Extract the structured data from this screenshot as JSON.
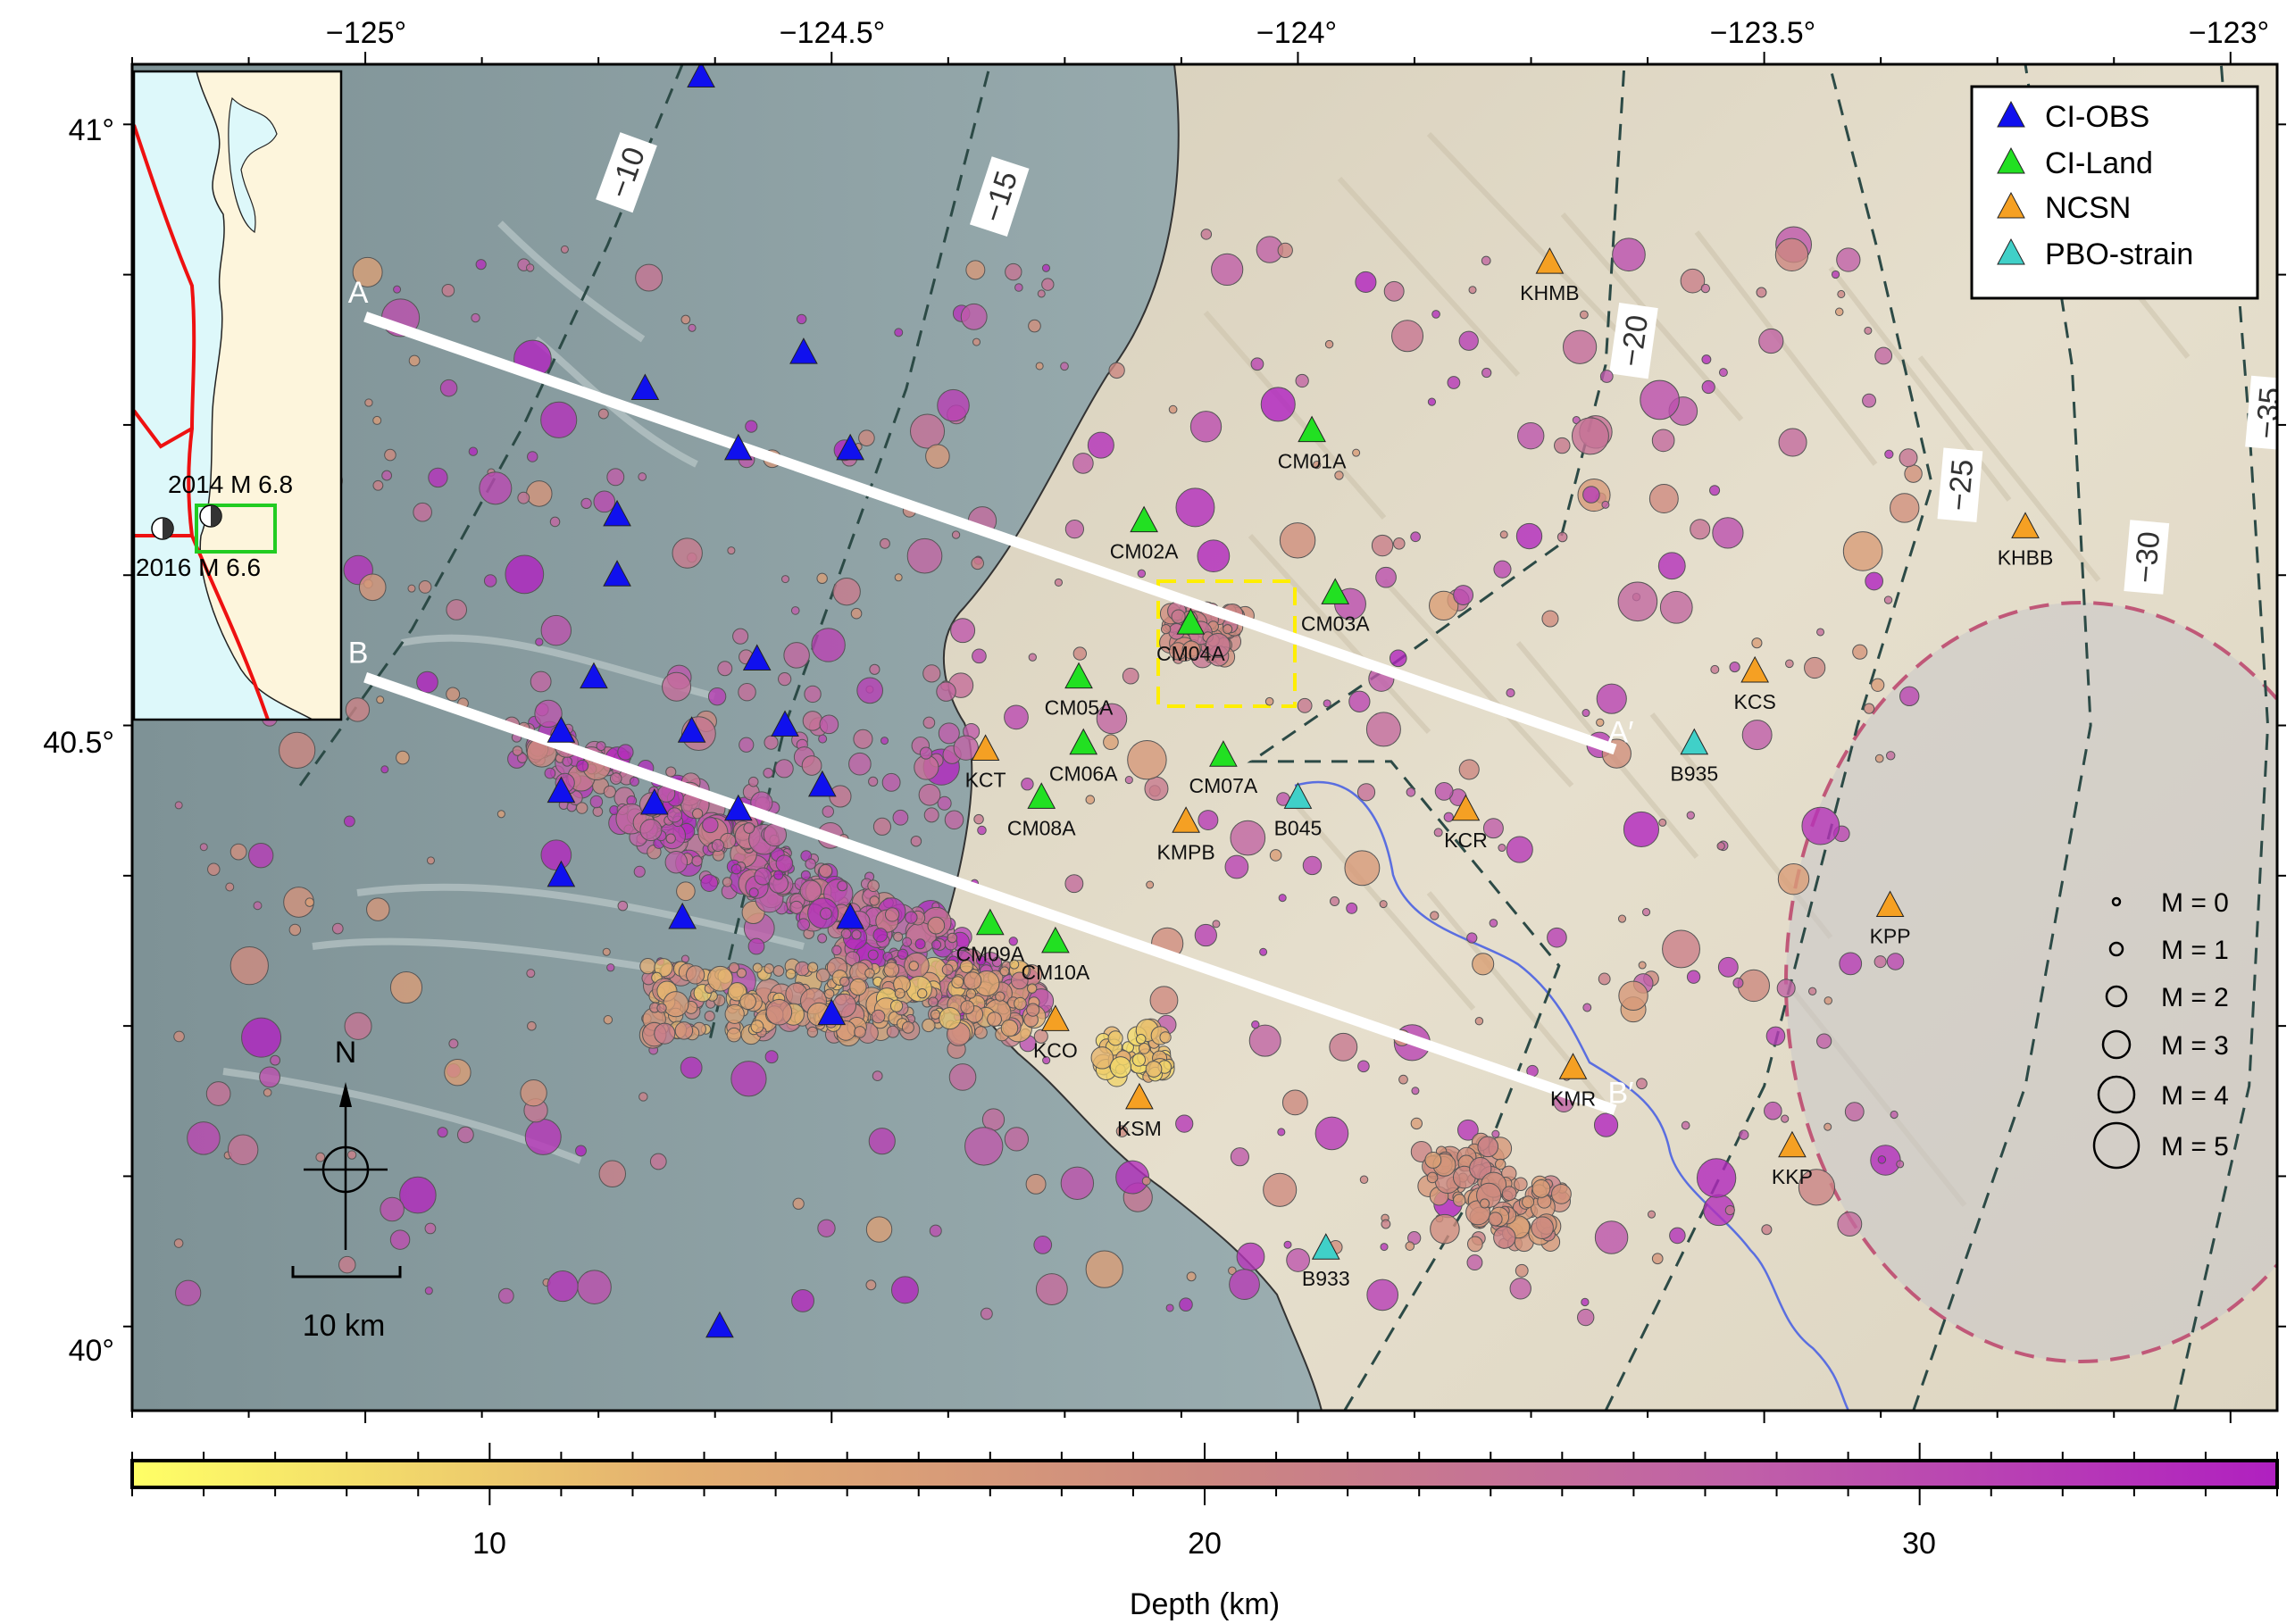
{
  "axes": {
    "lon_ticks": [
      "−125°",
      "−124.5°",
      "−124°",
      "−123.5°",
      "−123°"
    ],
    "lat_ticks": [
      "41°",
      "40.5°",
      "40°"
    ],
    "lon_range": [
      -125.25,
      -122.95
    ],
    "lat_range": [
      39.93,
      41.05
    ]
  },
  "legend": {
    "stations": [
      {
        "label": "CI-OBS",
        "color": "#1010ee"
      },
      {
        "label": "CI-Land",
        "color": "#22e022"
      },
      {
        "label": "NCSN",
        "color": "#f5a023"
      },
      {
        "label": "PBO-strain",
        "color": "#40d0c8"
      }
    ],
    "magnitudes": [
      "M = 0",
      "M = 1",
      "M = 2",
      "M = 3",
      "M = 4",
      "M = 5"
    ]
  },
  "colorbar": {
    "label": "Depth (km)",
    "ticks": [
      "10",
      "20",
      "30"
    ],
    "range": [
      5,
      35
    ],
    "colors": [
      "#ffff66",
      "#e4b070",
      "#cc8880",
      "#c060a8",
      "#b020c0"
    ]
  },
  "stations": [
    {
      "code": "CM01A",
      "network": "CI-Land",
      "lon": -123.985,
      "lat": 40.745
    },
    {
      "code": "CM02A",
      "network": "CI-Land",
      "lon": -124.165,
      "lat": 40.67
    },
    {
      "code": "CM03A",
      "network": "CI-Land",
      "lon": -123.96,
      "lat": 40.61
    },
    {
      "code": "CM04A",
      "network": "CI-Land",
      "lon": -124.115,
      "lat": 40.585
    },
    {
      "code": "CM05A",
      "network": "CI-Land",
      "lon": -124.235,
      "lat": 40.54
    },
    {
      "code": "CM06A",
      "network": "CI-Land",
      "lon": -124.23,
      "lat": 40.485
    },
    {
      "code": "CM07A",
      "network": "CI-Land",
      "lon": -124.08,
      "lat": 40.475
    },
    {
      "code": "CM08A",
      "network": "CI-Land",
      "lon": -124.275,
      "lat": 40.44
    },
    {
      "code": "CM09A",
      "network": "CI-Land",
      "lon": -124.33,
      "lat": 40.335
    },
    {
      "code": "CM10A",
      "network": "CI-Land",
      "lon": -124.26,
      "lat": 40.32
    },
    {
      "code": "KHMB",
      "network": "NCSN",
      "lon": -123.73,
      "lat": 40.885
    },
    {
      "code": "KHBB",
      "network": "NCSN",
      "lon": -123.22,
      "lat": 40.665
    },
    {
      "code": "KCS",
      "network": "NCSN",
      "lon": -123.51,
      "lat": 40.545
    },
    {
      "code": "KCT",
      "network": "NCSN",
      "lon": -124.335,
      "lat": 40.48
    },
    {
      "code": "KCR",
      "network": "NCSN",
      "lon": -123.82,
      "lat": 40.43
    },
    {
      "code": "KMPB",
      "network": "NCSN",
      "lon": -124.12,
      "lat": 40.42
    },
    {
      "code": "KPP",
      "network": "NCSN",
      "lon": -123.365,
      "lat": 40.35
    },
    {
      "code": "KCO",
      "network": "NCSN",
      "lon": -124.26,
      "lat": 40.255
    },
    {
      "code": "KSM",
      "network": "NCSN",
      "lon": -124.17,
      "lat": 40.19
    },
    {
      "code": "KMR",
      "network": "NCSN",
      "lon": -123.705,
      "lat": 40.215
    },
    {
      "code": "KKP",
      "network": "NCSN",
      "lon": -123.47,
      "lat": 40.15
    },
    {
      "code": "B935",
      "network": "PBO-strain",
      "lon": -123.575,
      "lat": 40.485
    },
    {
      "code": "B045",
      "network": "PBO-strain",
      "lon": -124.0,
      "lat": 40.44
    },
    {
      "code": "B933",
      "network": "PBO-strain",
      "lon": -123.97,
      "lat": 40.065
    }
  ],
  "obs_stations": [
    {
      "lon": -124.64,
      "lat": 41.04
    },
    {
      "lon": -124.53,
      "lat": 40.81
    },
    {
      "lon": -124.7,
      "lat": 40.78
    },
    {
      "lon": -124.6,
      "lat": 40.73
    },
    {
      "lon": -124.48,
      "lat": 40.73
    },
    {
      "lon": -124.73,
      "lat": 40.675
    },
    {
      "lon": -124.73,
      "lat": 40.625
    },
    {
      "lon": -124.58,
      "lat": 40.555
    },
    {
      "lon": -124.755,
      "lat": 40.54
    },
    {
      "lon": -124.65,
      "lat": 40.495
    },
    {
      "lon": -124.55,
      "lat": 40.5
    },
    {
      "lon": -124.79,
      "lat": 40.495
    },
    {
      "lon": -124.51,
      "lat": 40.45
    },
    {
      "lon": -124.79,
      "lat": 40.445
    },
    {
      "lon": -124.69,
      "lat": 40.435
    },
    {
      "lon": -124.6,
      "lat": 40.43
    },
    {
      "lon": -124.79,
      "lat": 40.375
    },
    {
      "lon": -124.66,
      "lat": 40.34
    },
    {
      "lon": -124.48,
      "lat": 40.34
    },
    {
      "lon": -124.5,
      "lat": 40.26
    },
    {
      "lon": -124.62,
      "lat": 40.0
    }
  ],
  "profiles": [
    {
      "start": "A",
      "end": "A′",
      "from": [
        -125.0,
        40.84
      ],
      "to": [
        -123.66,
        40.48
      ]
    },
    {
      "start": "B",
      "end": "B′",
      "from": [
        -125.0,
        40.54
      ],
      "to": [
        -123.66,
        40.18
      ]
    }
  ],
  "contours": [
    {
      "label": "−10",
      "points": [
        [
          -125.07,
          40.45
        ],
        [
          -124.95,
          40.58
        ],
        [
          -124.83,
          40.75
        ],
        [
          -124.74,
          40.9
        ],
        [
          -124.66,
          41.05
        ]
      ]
    },
    {
      "label": "−15",
      "points": [
        [
          -124.63,
          40.24
        ],
        [
          -124.55,
          40.5
        ],
        [
          -124.42,
          40.78
        ],
        [
          -124.33,
          41.05
        ]
      ]
    },
    {
      "label": "−20",
      "points": [
        [
          -123.95,
          39.93
        ],
        [
          -123.82,
          40.1
        ],
        [
          -123.72,
          40.3
        ],
        [
          -123.9,
          40.47
        ],
        [
          -124.05,
          40.47
        ],
        [
          -123.9,
          40.55
        ],
        [
          -123.72,
          40.65
        ],
        [
          -123.67,
          40.8
        ],
        [
          -123.65,
          41.05
        ]
      ]
    },
    {
      "label": "−25",
      "points": [
        [
          -123.67,
          39.93
        ],
        [
          -123.5,
          40.2
        ],
        [
          -123.4,
          40.5
        ],
        [
          -123.32,
          40.7
        ],
        [
          -123.38,
          40.9
        ],
        [
          -123.43,
          41.05
        ]
      ]
    },
    {
      "label": "−30",
      "points": [
        [
          -123.34,
          39.93
        ],
        [
          -123.22,
          40.2
        ],
        [
          -123.15,
          40.5
        ],
        [
          -123.17,
          40.8
        ],
        [
          -123.22,
          41.05
        ]
      ]
    },
    {
      "label": "−35",
      "points": [
        [
          -123.06,
          39.93
        ],
        [
          -122.98,
          40.2
        ],
        [
          -122.96,
          40.5
        ],
        [
          -122.98,
          40.75
        ],
        [
          -123.01,
          41.05
        ]
      ]
    }
  ],
  "inset": {
    "event_2014": "2014 M 6.8",
    "event_2016": "2016 M 6.6"
  },
  "scale_bar": {
    "label": "10 km"
  },
  "north_arrow": {
    "label": "N"
  }
}
